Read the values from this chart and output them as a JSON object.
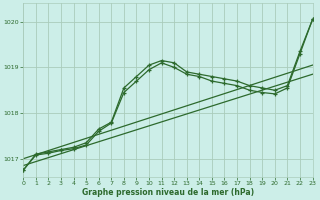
{
  "background_color": "#cceee8",
  "grid_color": "#aaccbb",
  "line_color": "#2d6a2d",
  "title": "Graphe pression niveau de la mer (hPa)",
  "xlim": [
    0,
    23
  ],
  "ylim": [
    1016.6,
    1020.4
  ],
  "yticks": [
    1017,
    1018,
    1019,
    1020
  ],
  "xticks": [
    0,
    1,
    2,
    3,
    4,
    5,
    6,
    7,
    8,
    9,
    10,
    11,
    12,
    13,
    14,
    15,
    16,
    17,
    18,
    19,
    20,
    21,
    22,
    23
  ],
  "line1": {
    "x": [
      0,
      23
    ],
    "y": [
      1016.85,
      1018.85
    ]
  },
  "line2": {
    "x": [
      0,
      23
    ],
    "y": [
      1017.0,
      1019.05
    ]
  },
  "line3": {
    "x": [
      0,
      1,
      2,
      3,
      4,
      5,
      6,
      7,
      8,
      9,
      10,
      11,
      12,
      13,
      14,
      15,
      16,
      17,
      18,
      19,
      20,
      21,
      22,
      23
    ],
    "y": [
      1016.75,
      1017.1,
      1017.15,
      1017.2,
      1017.25,
      1017.35,
      1017.65,
      1017.8,
      1018.55,
      1018.8,
      1019.05,
      1019.15,
      1019.1,
      1018.9,
      1018.85,
      1018.8,
      1018.75,
      1018.7,
      1018.6,
      1018.55,
      1018.5,
      1018.6,
      1019.35,
      1020.05
    ]
  },
  "line4": {
    "x": [
      0,
      1,
      2,
      3,
      4,
      5,
      6,
      7,
      8,
      9,
      10,
      11,
      12,
      13,
      14,
      15,
      16,
      17,
      18,
      19,
      20,
      21,
      22,
      23
    ],
    "y": [
      1016.75,
      1017.08,
      1017.12,
      1017.18,
      1017.22,
      1017.3,
      1017.6,
      1017.78,
      1018.45,
      1018.7,
      1018.95,
      1019.1,
      1019.0,
      1018.85,
      1018.8,
      1018.7,
      1018.65,
      1018.6,
      1018.5,
      1018.45,
      1018.42,
      1018.55,
      1019.3,
      1020.05
    ]
  }
}
